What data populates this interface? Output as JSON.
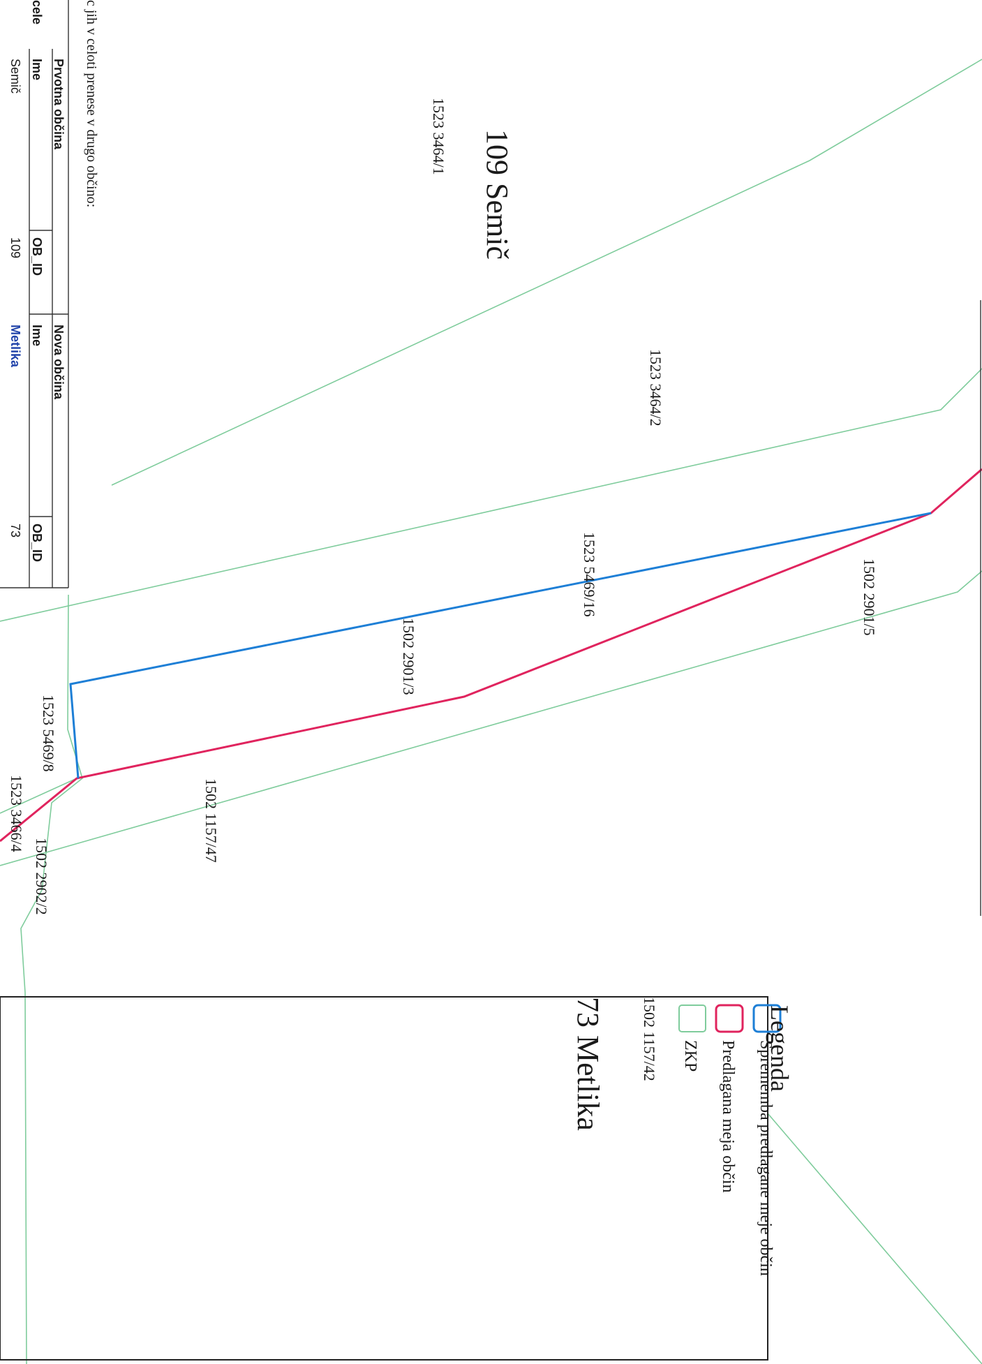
{
  "colors": {
    "change_line": "#1e7fd6",
    "proposed_line": "#e0245e",
    "zkp_line": "#7fcc9c",
    "legend_border": "#222222"
  },
  "table": {
    "col_parcels": "cele",
    "intro_text": "c jih v celoti prenese v drugo občino:",
    "original_header": "Prvotna občina",
    "new_header": "Nova občina",
    "ime_label_1": "Ime",
    "obid_label_1": "OB_ID",
    "ime_label_2": "Ime",
    "obid_label_2": "OB_ID",
    "original_name": "Semič",
    "original_id": "109",
    "new_name": "Metlika",
    "new_id": "73"
  },
  "map": {
    "municipality_1": "109 Semič",
    "municipality_2": "73 Metlika",
    "parcels": [
      "1523 3464/1",
      "1523 3464/2",
      "1523 5469/16",
      "1502 2901/5",
      "1502 2901/3",
      "1523 5469/8",
      "1502 1157/47",
      "1523 3466/4",
      "1502 2902/2",
      "1502 1157/42"
    ]
  },
  "legend": {
    "title": "Legenda",
    "items": [
      {
        "label": "Sprememba predlagane meje občin",
        "icon": "blue-square-icon"
      },
      {
        "label": "Predlagana meja občin",
        "icon": "red-square-icon"
      },
      {
        "label": "ZKP",
        "icon": "green-square-icon"
      }
    ]
  }
}
